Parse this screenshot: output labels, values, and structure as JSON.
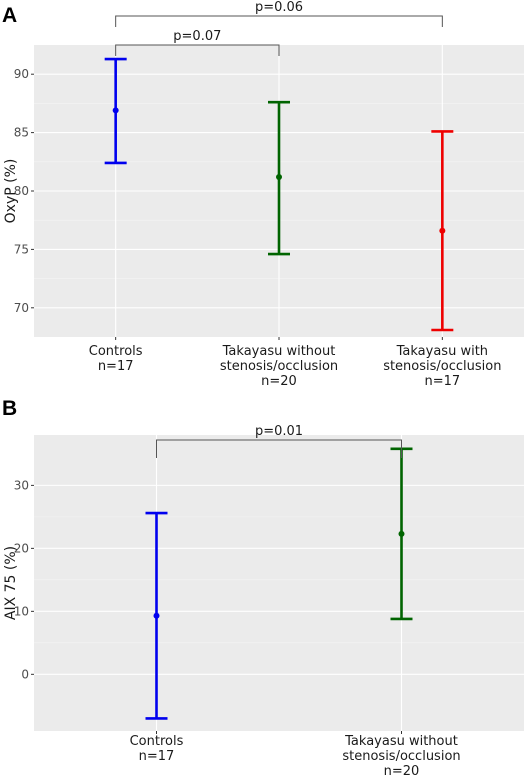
{
  "chart_data": [
    {
      "panel": "A",
      "type": "errorbar",
      "ylabel": "OxyP (%)",
      "ylim": [
        67.5,
        92.5
      ],
      "yticks": [
        70,
        75,
        80,
        85,
        90
      ],
      "grid": true,
      "categories": [
        [
          "Controls",
          "n=17"
        ],
        [
          "Takayasu without",
          "stenosis/occlusion",
          "n=20"
        ],
        [
          "Takayasu with",
          "stenosis/occlusion",
          "n=17"
        ]
      ],
      "points": [
        {
          "mean": 86.9,
          "low": 82.4,
          "high": 91.3,
          "color": "#0000ee"
        },
        {
          "mean": 81.2,
          "low": 74.6,
          "high": 87.6,
          "color": "#006400"
        },
        {
          "mean": 76.6,
          "low": 68.1,
          "high": 85.1,
          "color": "#ee0000"
        }
      ],
      "comparisons": [
        {
          "from": 0,
          "to": 1,
          "label": "p=0.07",
          "level": 0
        },
        {
          "from": 0,
          "to": 2,
          "label": "p=0.06",
          "level": 1
        }
      ]
    },
    {
      "panel": "B",
      "type": "errorbar",
      "ylabel": "AIX 75 (%)",
      "ylim": [
        -9,
        38
      ],
      "yticks": [
        0,
        10,
        20,
        30
      ],
      "grid": true,
      "categories": [
        [
          "Controls",
          "n=17"
        ],
        [
          "Takayasu without",
          "stenosis/occlusion",
          "n=20"
        ]
      ],
      "points": [
        {
          "mean": 9.3,
          "low": -7.0,
          "high": 25.6,
          "color": "#0000ee"
        },
        {
          "mean": 22.3,
          "low": 8.8,
          "high": 35.8,
          "color": "#006400"
        }
      ],
      "comparisons": [
        {
          "from": 0,
          "to": 1,
          "label": "p=0.01",
          "level": 0
        }
      ]
    }
  ]
}
